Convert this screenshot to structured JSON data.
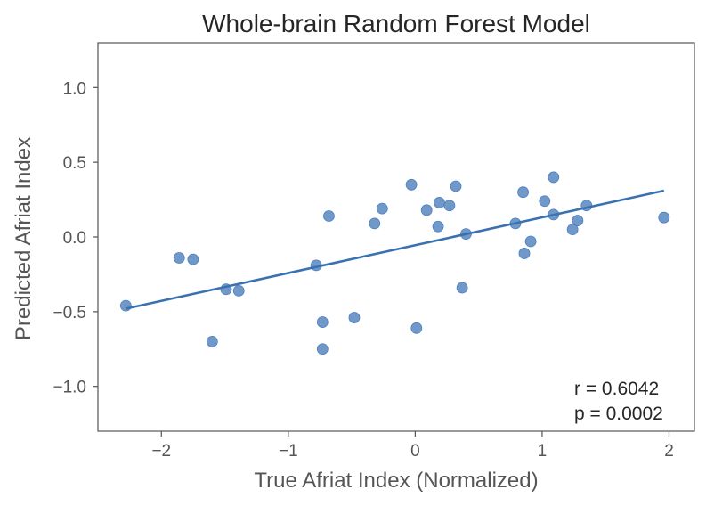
{
  "chart_data": {
    "type": "scatter",
    "title": "Whole-brain Random Forest Model",
    "xlabel": "True Afriat Index (Normalized)",
    "ylabel": "Predicted Afriat Index",
    "xlim": [
      -2.5,
      2.2
    ],
    "ylim": [
      -1.3,
      1.3
    ],
    "xticks": [
      -2,
      -1,
      0,
      1,
      2
    ],
    "xtick_labels": [
      "−2",
      "−1",
      "0",
      "1",
      "2"
    ],
    "yticks": [
      -1.0,
      -0.5,
      0.0,
      0.5,
      1.0
    ],
    "ytick_labels": [
      "−1.0",
      "−0.5",
      "0.0",
      "0.5",
      "1.0"
    ],
    "grid": false,
    "point_color": "#4c7fbd",
    "line_color": "#3a72b0",
    "points": [
      {
        "x": -2.28,
        "y": -0.46
      },
      {
        "x": -1.86,
        "y": -0.14
      },
      {
        "x": -1.75,
        "y": -0.15
      },
      {
        "x": -1.6,
        "y": -0.7
      },
      {
        "x": -1.49,
        "y": -0.35
      },
      {
        "x": -1.39,
        "y": -0.36
      },
      {
        "x": -0.78,
        "y": -0.19
      },
      {
        "x": -0.73,
        "y": -0.57
      },
      {
        "x": -0.73,
        "y": -0.75
      },
      {
        "x": -0.68,
        "y": 0.14
      },
      {
        "x": -0.48,
        "y": -0.54
      },
      {
        "x": -0.32,
        "y": 0.09
      },
      {
        "x": -0.26,
        "y": 0.19
      },
      {
        "x": -0.03,
        "y": 0.35
      },
      {
        "x": 0.01,
        "y": -0.61
      },
      {
        "x": 0.09,
        "y": 0.18
      },
      {
        "x": 0.18,
        "y": 0.07
      },
      {
        "x": 0.19,
        "y": 0.23
      },
      {
        "x": 0.27,
        "y": 0.21
      },
      {
        "x": 0.32,
        "y": 0.34
      },
      {
        "x": 0.37,
        "y": -0.34
      },
      {
        "x": 0.4,
        "y": 0.02
      },
      {
        "x": 0.79,
        "y": 0.09
      },
      {
        "x": 0.85,
        "y": 0.3
      },
      {
        "x": 0.86,
        "y": -0.11
      },
      {
        "x": 0.91,
        "y": -0.03
      },
      {
        "x": 1.02,
        "y": 0.24
      },
      {
        "x": 1.09,
        "y": 0.4
      },
      {
        "x": 1.09,
        "y": 0.15
      },
      {
        "x": 1.24,
        "y": 0.05
      },
      {
        "x": 1.28,
        "y": 0.11
      },
      {
        "x": 1.35,
        "y": 0.21
      },
      {
        "x": 1.96,
        "y": 0.13
      }
    ],
    "fit_line": {
      "x": [
        -2.28,
        1.96
      ],
      "y": [
        -0.48,
        0.31
      ]
    },
    "annotation_lines": [
      "r = 0.6042",
      "p = 0.0002"
    ],
    "annotation_position": "bottom-right"
  }
}
